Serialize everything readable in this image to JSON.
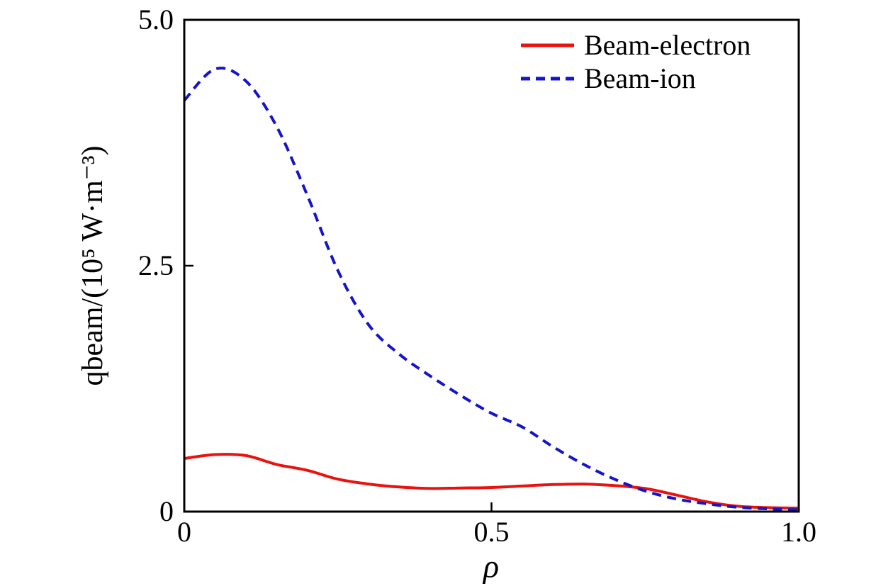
{
  "figure": {
    "background": "#ffffff",
    "axis_color": "#000000"
  },
  "chart_data": {
    "type": "line",
    "title": "",
    "xlabel": "ρ",
    "ylabel": "qbeam/(10⁵ W·m⁻³)",
    "xlim": [
      0,
      1
    ],
    "ylim": [
      0,
      5
    ],
    "grid": false,
    "legend_position": "upper-right-inside",
    "x_ticks": [
      {
        "value": 0,
        "label": "0"
      },
      {
        "value": 0.5,
        "label": "0.5"
      },
      {
        "value": 1,
        "label": "1.0"
      }
    ],
    "y_ticks": [
      {
        "value": 0,
        "label": "0"
      },
      {
        "value": 2.5,
        "label": "2.5"
      },
      {
        "value": 5,
        "label": "5.0"
      }
    ],
    "x": [
      0,
      0.05,
      0.1,
      0.15,
      0.2,
      0.25,
      0.3,
      0.35,
      0.4,
      0.45,
      0.5,
      0.55,
      0.6,
      0.65,
      0.7,
      0.75,
      0.8,
      0.85,
      0.9,
      0.95,
      1.0
    ],
    "series": [
      {
        "name": "Beam-electron",
        "color": "#e8120e",
        "style": "solid",
        "values": [
          0.54,
          0.58,
          0.57,
          0.48,
          0.42,
          0.33,
          0.28,
          0.25,
          0.235,
          0.24,
          0.245,
          0.26,
          0.275,
          0.28,
          0.265,
          0.235,
          0.17,
          0.1,
          0.055,
          0.04,
          0.035
        ]
      },
      {
        "name": "Beam-ion",
        "color": "#1414cc",
        "style": "dashed",
        "values": [
          4.18,
          4.5,
          4.38,
          3.92,
          3.22,
          2.45,
          1.9,
          1.6,
          1.38,
          1.18,
          1.0,
          0.86,
          0.66,
          0.48,
          0.33,
          0.21,
          0.13,
          0.08,
          0.045,
          0.028,
          0.018
        ]
      }
    ]
  }
}
